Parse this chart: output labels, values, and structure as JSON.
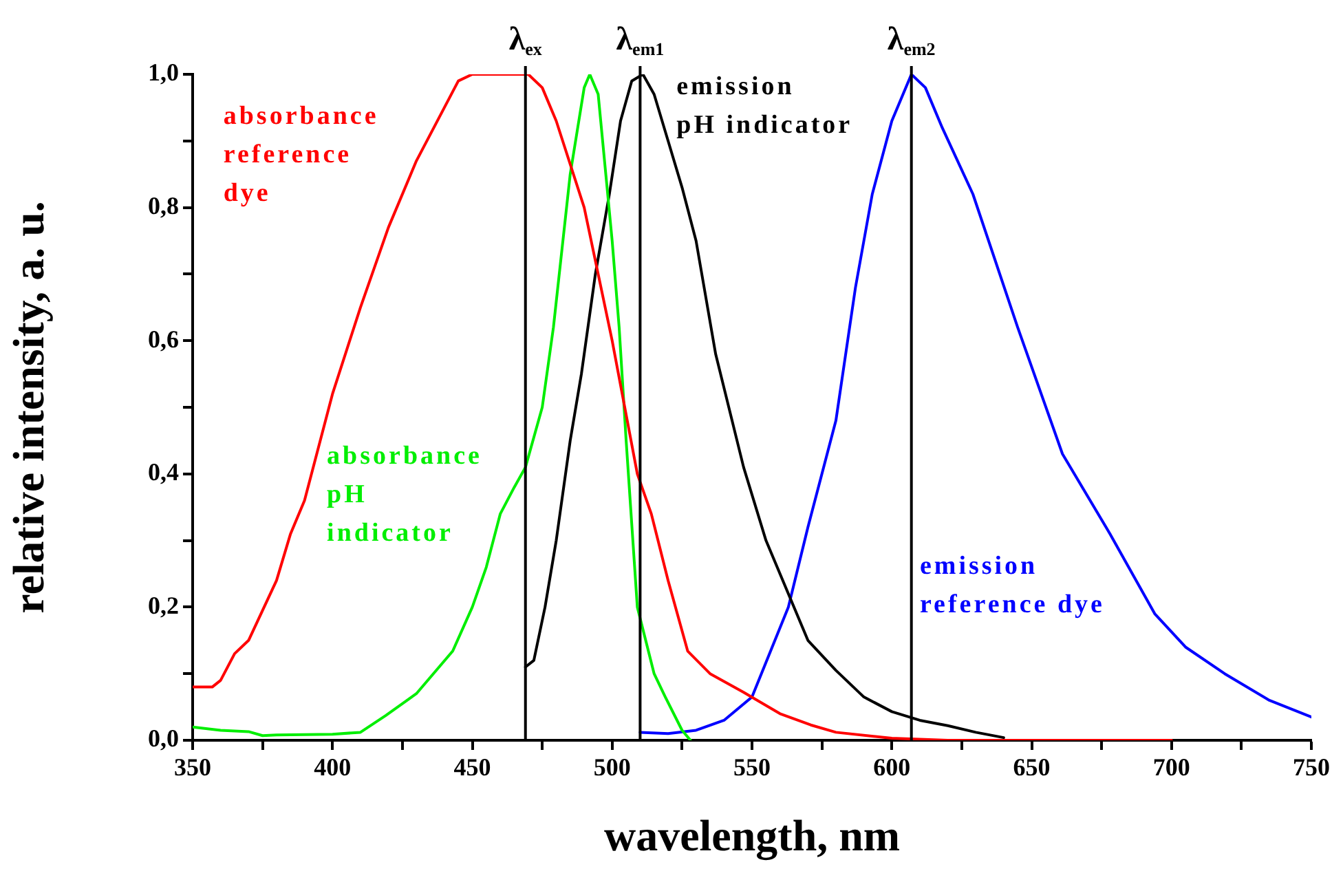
{
  "chart_data": {
    "type": "line",
    "xlabel": "wavelength, nm",
    "ylabel": "relative intensity, a. u.",
    "xlim": [
      350,
      750
    ],
    "ylim": [
      0,
      1.0
    ],
    "xticks": [
      350,
      {
        "value": 375,
        "label": null
      },
      400,
      {
        "value": 425,
        "label": null
      },
      450,
      {
        "value": 475,
        "label": null
      },
      500,
      {
        "value": 525,
        "label": null
      },
      550,
      {
        "value": 575,
        "label": null
      },
      600,
      {
        "value": 625,
        "label": null
      },
      650,
      {
        "value": 675,
        "label": null
      },
      700,
      {
        "value": 725,
        "label": null
      },
      750
    ],
    "yticks": [
      {
        "value": 0,
        "label": "0,0"
      },
      {
        "value": 0.1,
        "label": null
      },
      {
        "value": 0.2,
        "label": "0,2"
      },
      {
        "value": 0.3,
        "label": null
      },
      {
        "value": 0.4,
        "label": "0,4"
      },
      {
        "value": 0.5,
        "label": null
      },
      {
        "value": 0.6,
        "label": "0,6"
      },
      {
        "value": 0.7,
        "label": null
      },
      {
        "value": 0.8,
        "label": "0,8"
      },
      {
        "value": 0.9,
        "label": null
      },
      {
        "value": 1.0,
        "label": "1,0"
      }
    ],
    "marker": "none",
    "line_style": "solid",
    "legend": false,
    "series": [
      {
        "name": "absorbance reference dye",
        "color": "#ff0000",
        "x": [
          350,
          357,
          360,
          365,
          370,
          380,
          385,
          390,
          400,
          410,
          420,
          430,
          440,
          445,
          450,
          460,
          470,
          475,
          480,
          490,
          500,
          509,
          514,
          520,
          527,
          535,
          547,
          560,
          571,
          580,
          600,
          620,
          650,
          700
        ],
        "values": [
          0.08,
          0.08,
          0.09,
          0.13,
          0.15,
          0.24,
          0.31,
          0.36,
          0.52,
          0.65,
          0.77,
          0.87,
          0.95,
          0.99,
          1.0,
          1.0,
          1.0,
          0.98,
          0.93,
          0.8,
          0.6,
          0.4,
          0.34,
          0.24,
          0.134,
          0.1,
          0.072,
          0.04,
          0.023,
          0.012,
          0.003,
          0.0,
          0.0,
          0.0
        ]
      },
      {
        "name": "absorbance pH indicator",
        "color": "#00ee00",
        "x": [
          350,
          360,
          370,
          375,
          380,
          400,
          410,
          419,
          430,
          443,
          450,
          455,
          460,
          465,
          469,
          475,
          479,
          485,
          490,
          492,
          495,
          500,
          502.5,
          505,
          509,
          515,
          519,
          525,
          528
        ],
        "values": [
          0.02,
          0.015,
          0.013,
          0.007,
          0.008,
          0.009,
          0.012,
          0.037,
          0.07,
          0.134,
          0.2,
          0.26,
          0.34,
          0.38,
          0.41,
          0.5,
          0.62,
          0.85,
          0.98,
          1.0,
          0.97,
          0.75,
          0.62,
          0.45,
          0.2,
          0.1,
          0.065,
          0.015,
          0.0
        ]
      },
      {
        "name": "emission pH indicator",
        "color": "#000000",
        "x": [
          469,
          472,
          476,
          480,
          485,
          489,
          494,
          499,
          503,
          507,
          511,
          515,
          520,
          525,
          530,
          537,
          547,
          555,
          563,
          570,
          580,
          590,
          600,
          610,
          620,
          630,
          640
        ],
        "values": [
          0.11,
          0.12,
          0.2,
          0.3,
          0.45,
          0.55,
          0.7,
          0.82,
          0.93,
          0.99,
          1.0,
          0.97,
          0.9,
          0.83,
          0.75,
          0.58,
          0.41,
          0.3,
          0.22,
          0.15,
          0.105,
          0.065,
          0.043,
          0.03,
          0.022,
          0.012,
          0.004
        ]
      },
      {
        "name": "emission reference dye",
        "color": "#0000ff",
        "x": [
          510,
          520,
          530,
          540,
          550,
          563,
          570,
          580,
          587,
          593,
          600,
          607,
          612,
          618,
          629,
          645,
          661,
          678,
          694,
          705,
          719,
          735,
          750
        ],
        "values": [
          0.012,
          0.01,
          0.015,
          0.03,
          0.065,
          0.2,
          0.32,
          0.48,
          0.68,
          0.82,
          0.93,
          1.0,
          0.98,
          0.92,
          0.82,
          0.62,
          0.43,
          0.31,
          0.19,
          0.14,
          0.1,
          0.06,
          0.035
        ]
      }
    ],
    "ref_lines": [
      {
        "axis": "x",
        "value": 469,
        "label": "λ$_{ex}$",
        "color": "#000000"
      },
      {
        "axis": "x",
        "value": 510,
        "label": "λ$_{em1}$",
        "color": "#000000"
      },
      {
        "axis": "x",
        "value": 607,
        "label": "λ$_{em2}$",
        "color": "#000000"
      }
    ]
  }
}
